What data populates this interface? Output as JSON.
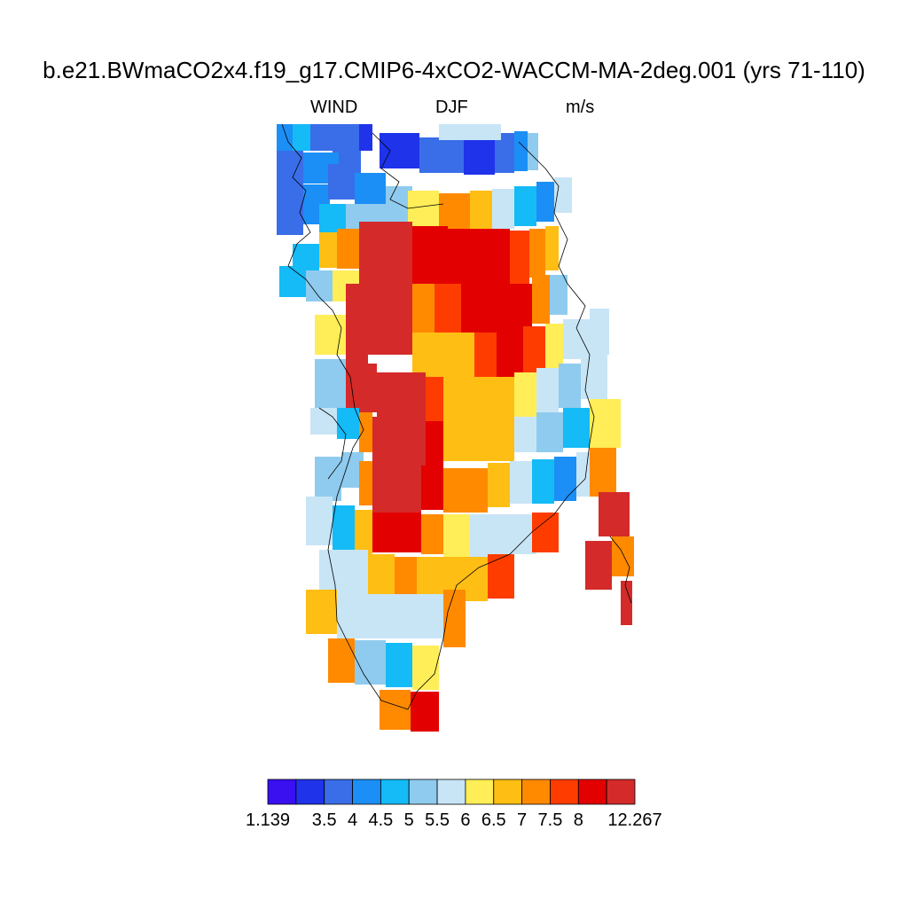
{
  "title": "b.e21.BWmaCO2x4.f19_g17.CMIP6-4xCO2-WACCM-MA-2deg.001 (yrs 71-110)",
  "subtitle": {
    "variable": "WIND",
    "season": "DJF",
    "units": "m/s"
  },
  "colorbar": {
    "colors": [
      "#3a0ff0",
      "#1f33ea",
      "#3a6de8",
      "#1b8ff5",
      "#14bbf6",
      "#8fcbee",
      "#c8e5f6",
      "#ffee58",
      "#ffbe14",
      "#ff8a00",
      "#ff3c00",
      "#e30000",
      "#d42a2a"
    ],
    "labels": [
      "1.139",
      "3.5",
      "4",
      "4.5",
      "5",
      "5.5",
      "6",
      "6.5",
      "7",
      "7.5",
      "8",
      "12.267"
    ],
    "min": 1.139,
    "max": 12.267,
    "boundaries": [
      3.5,
      4,
      4.5,
      5,
      5.5,
      6,
      6.5,
      7,
      7.5,
      8
    ]
  }
}
